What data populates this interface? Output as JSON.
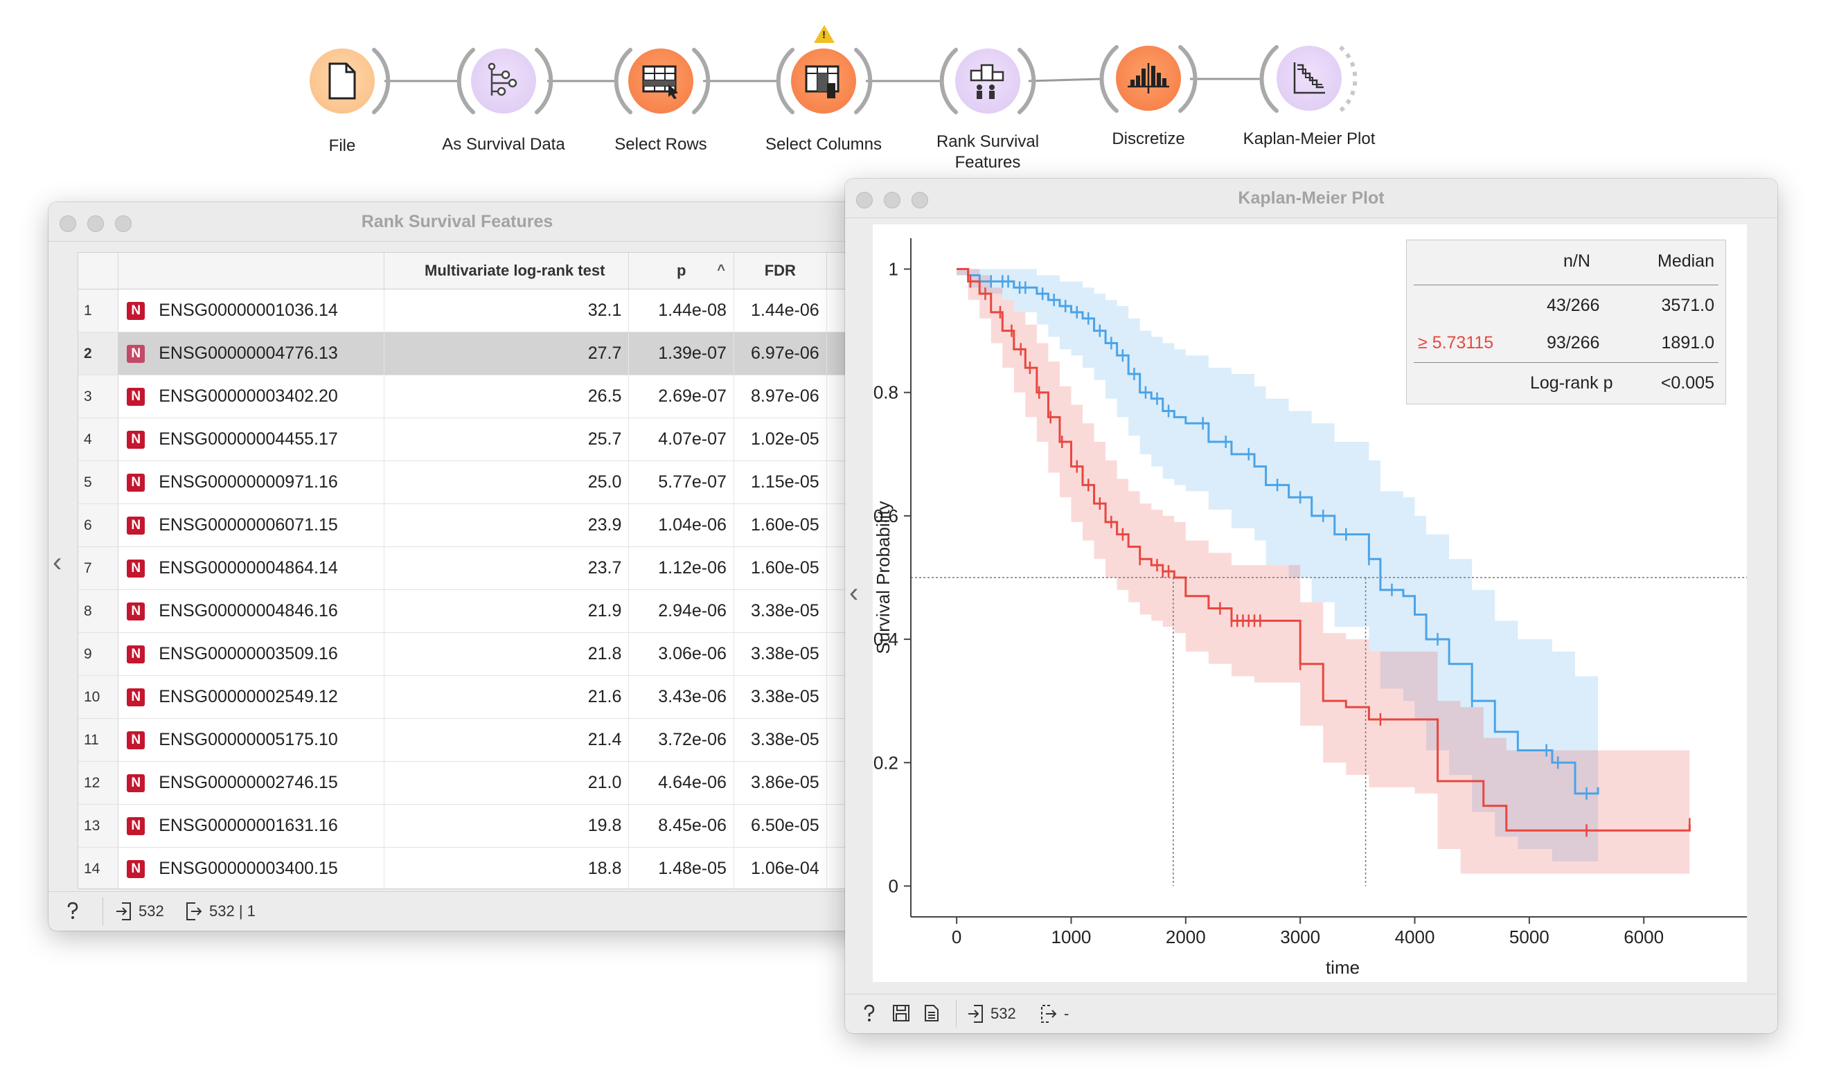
{
  "workflow": {
    "nodes": [
      {
        "label": "File",
        "icon": "file-icon"
      },
      {
        "label": "As Survival Data",
        "icon": "survival-data-icon"
      },
      {
        "label": "Select Rows",
        "icon": "select-rows-icon"
      },
      {
        "label": "Select Columns",
        "icon": "select-columns-icon"
      },
      {
        "label": "Rank Survival\nFeatures",
        "icon": "rank-survival-icon"
      },
      {
        "label": "Discretize",
        "icon": "discretize-icon"
      },
      {
        "label": "Kaplan-Meier Plot",
        "icon": "kaplan-meier-icon"
      }
    ],
    "warning_symbol": "!"
  },
  "rank_window": {
    "title": "Rank Survival Features",
    "columns": [
      "Multivariate log-rank test",
      "p",
      "FDR"
    ],
    "sort_indicator": "^",
    "feature_type_letter": "N",
    "rows": [
      {
        "n": "1",
        "name": "ENSG00000001036.14",
        "score": "32.1",
        "p": "1.44e-08",
        "fdr": "1.44e-06"
      },
      {
        "n": "2",
        "name": "ENSG00000004776.13",
        "score": "27.7",
        "p": "1.39e-07",
        "fdr": "6.97e-06"
      },
      {
        "n": "3",
        "name": "ENSG00000003402.20",
        "score": "26.5",
        "p": "2.69e-07",
        "fdr": "8.97e-06"
      },
      {
        "n": "4",
        "name": "ENSG00000004455.17",
        "score": "25.7",
        "p": "4.07e-07",
        "fdr": "1.02e-05"
      },
      {
        "n": "5",
        "name": "ENSG00000000971.16",
        "score": "25.0",
        "p": "5.77e-07",
        "fdr": "1.15e-05"
      },
      {
        "n": "6",
        "name": "ENSG00000006071.15",
        "score": "23.9",
        "p": "1.04e-06",
        "fdr": "1.60e-05"
      },
      {
        "n": "7",
        "name": "ENSG00000004864.14",
        "score": "23.7",
        "p": "1.12e-06",
        "fdr": "1.60e-05"
      },
      {
        "n": "8",
        "name": "ENSG00000004846.16",
        "score": "21.9",
        "p": "2.94e-06",
        "fdr": "3.38e-05"
      },
      {
        "n": "9",
        "name": "ENSG00000003509.16",
        "score": "21.8",
        "p": "3.06e-06",
        "fdr": "3.38e-05"
      },
      {
        "n": "10",
        "name": "ENSG00000002549.12",
        "score": "21.6",
        "p": "3.43e-06",
        "fdr": "3.38e-05"
      },
      {
        "n": "11",
        "name": "ENSG00000005175.10",
        "score": "21.4",
        "p": "3.72e-06",
        "fdr": "3.38e-05"
      },
      {
        "n": "12",
        "name": "ENSG00000002746.15",
        "score": "21.0",
        "p": "4.64e-06",
        "fdr": "3.86e-05"
      },
      {
        "n": "13",
        "name": "ENSG00000001631.16",
        "score": "19.8",
        "p": "8.45e-06",
        "fdr": "6.50e-05"
      },
      {
        "n": "14",
        "name": "ENSG00000003400.15",
        "score": "18.8",
        "p": "1.48e-05",
        "fdr": "1.06e-04"
      }
    ],
    "selected_row": 1,
    "status": {
      "input_count": "532",
      "output_count": "532 | 1"
    }
  },
  "km_window": {
    "title": "Kaplan-Meier Plot",
    "status": {
      "input_count": "532",
      "output_count": "-"
    },
    "legend": {
      "header_nn": "n/N",
      "header_median": "Median",
      "rows": [
        {
          "group": "",
          "nn": "43/266",
          "median": "3571.0",
          "color": "#4aa3e8"
        },
        {
          "group": "≥ 5.73115",
          "nn": "93/266",
          "median": "1891.0",
          "color": "#e8473f"
        }
      ],
      "logrank_label": "Log-rank p",
      "logrank_value": "<0.005"
    }
  },
  "chart_data": {
    "type": "line",
    "xlabel": "time",
    "ylabel": "Survival Probability",
    "xlim": [
      -400,
      6900
    ],
    "ylim": [
      -0.05,
      1.05
    ],
    "x_ticks": [
      0,
      1000,
      2000,
      3000,
      4000,
      5000,
      6000
    ],
    "y_ticks": [
      0,
      0.2,
      0.4,
      0.6,
      0.8,
      1
    ],
    "y_tick_labels": [
      "0",
      "0.2",
      "0.4",
      "0.6",
      "0.8",
      "1"
    ],
    "median_line_y": 0.5,
    "median_markers_x": [
      1891,
      3571
    ],
    "series": [
      {
        "color": "#4aa3e8",
        "x": [
          0,
          100,
          200,
          400,
          500,
          700,
          800,
          900,
          1000,
          1100,
          1200,
          1300,
          1400,
          1500,
          1600,
          1700,
          1800,
          1900,
          2000,
          2200,
          2400,
          2600,
          2700,
          2900,
          3100,
          3300,
          3500,
          3600,
          3700,
          3900,
          4000,
          4100,
          4300,
          4500,
          4700,
          4900,
          5200,
          5400,
          5600
        ],
        "y": [
          1.0,
          0.99,
          0.98,
          0.98,
          0.97,
          0.96,
          0.95,
          0.94,
          0.93,
          0.92,
          0.9,
          0.88,
          0.86,
          0.83,
          0.8,
          0.79,
          0.77,
          0.76,
          0.75,
          0.72,
          0.7,
          0.68,
          0.65,
          0.63,
          0.6,
          0.57,
          0.57,
          0.53,
          0.48,
          0.47,
          0.44,
          0.4,
          0.36,
          0.3,
          0.25,
          0.22,
          0.2,
          0.15,
          0.16
        ],
        "lower": [
          0.99,
          0.97,
          0.96,
          0.95,
          0.93,
          0.91,
          0.89,
          0.87,
          0.86,
          0.84,
          0.82,
          0.79,
          0.76,
          0.73,
          0.7,
          0.68,
          0.66,
          0.65,
          0.64,
          0.61,
          0.58,
          0.56,
          0.52,
          0.5,
          0.46,
          0.42,
          0.42,
          0.38,
          0.32,
          0.3,
          0.27,
          0.22,
          0.18,
          0.12,
          0.08,
          0.06,
          0.04,
          0.04,
          0.04
        ],
        "upper": [
          1.0,
          1.0,
          1.0,
          1.0,
          1.0,
          0.99,
          0.99,
          0.98,
          0.98,
          0.97,
          0.96,
          0.95,
          0.94,
          0.92,
          0.9,
          0.89,
          0.88,
          0.87,
          0.86,
          0.84,
          0.83,
          0.81,
          0.79,
          0.77,
          0.75,
          0.72,
          0.72,
          0.69,
          0.64,
          0.63,
          0.6,
          0.57,
          0.53,
          0.48,
          0.43,
          0.4,
          0.38,
          0.34,
          0.34
        ],
        "censor_x": [
          300,
          400,
          450,
          550,
          600,
          750,
          850,
          950,
          1050,
          1150,
          1250,
          1350,
          1450,
          1550,
          1650,
          1750,
          1850,
          2150,
          2350,
          2550,
          2800,
          3000,
          3200,
          3400,
          3600,
          3800,
          4200,
          4500,
          5150,
          5250,
          5500
        ]
      },
      {
        "color": "#e8473f",
        "x": [
          0,
          100,
          200,
          300,
          400,
          500,
          600,
          700,
          800,
          900,
          1000,
          1100,
          1200,
          1300,
          1400,
          1500,
          1600,
          1700,
          1800,
          1900,
          2000,
          2200,
          2400,
          2600,
          2800,
          3000,
          3200,
          3400,
          3600,
          3800,
          4000,
          4200,
          4400,
          4600,
          4800,
          5000,
          5400,
          5800,
          6200,
          6400
        ],
        "y": [
          1.0,
          0.98,
          0.96,
          0.93,
          0.9,
          0.87,
          0.84,
          0.8,
          0.76,
          0.72,
          0.68,
          0.65,
          0.62,
          0.59,
          0.57,
          0.55,
          0.53,
          0.52,
          0.51,
          0.5,
          0.47,
          0.45,
          0.43,
          0.43,
          0.43,
          0.36,
          0.3,
          0.29,
          0.27,
          0.27,
          0.27,
          0.17,
          0.17,
          0.13,
          0.09,
          0.09,
          0.09,
          0.09,
          0.09,
          0.1
        ],
        "lower": [
          0.99,
          0.95,
          0.92,
          0.88,
          0.84,
          0.8,
          0.76,
          0.72,
          0.67,
          0.63,
          0.59,
          0.56,
          0.53,
          0.5,
          0.48,
          0.46,
          0.44,
          0.43,
          0.42,
          0.41,
          0.38,
          0.36,
          0.34,
          0.33,
          0.33,
          0.26,
          0.2,
          0.18,
          0.16,
          0.16,
          0.15,
          0.06,
          0.02,
          0.02,
          0.02,
          0.02,
          0.02,
          0.02,
          0.02,
          0.02
        ],
        "upper": [
          1.0,
          1.0,
          0.99,
          0.97,
          0.95,
          0.93,
          0.91,
          0.88,
          0.85,
          0.81,
          0.78,
          0.75,
          0.72,
          0.69,
          0.66,
          0.64,
          0.62,
          0.61,
          0.6,
          0.59,
          0.56,
          0.54,
          0.52,
          0.52,
          0.52,
          0.46,
          0.41,
          0.4,
          0.38,
          0.38,
          0.38,
          0.3,
          0.29,
          0.24,
          0.22,
          0.22,
          0.22,
          0.22,
          0.22,
          0.22
        ],
        "censor_x": [
          120,
          250,
          380,
          480,
          560,
          640,
          720,
          820,
          920,
          1050,
          1150,
          1250,
          1350,
          1450,
          1600,
          1750,
          1800,
          1850,
          2300,
          2400,
          2450,
          2500,
          2550,
          2600,
          2650,
          3000,
          3700,
          5500,
          6400
        ]
      }
    ]
  }
}
